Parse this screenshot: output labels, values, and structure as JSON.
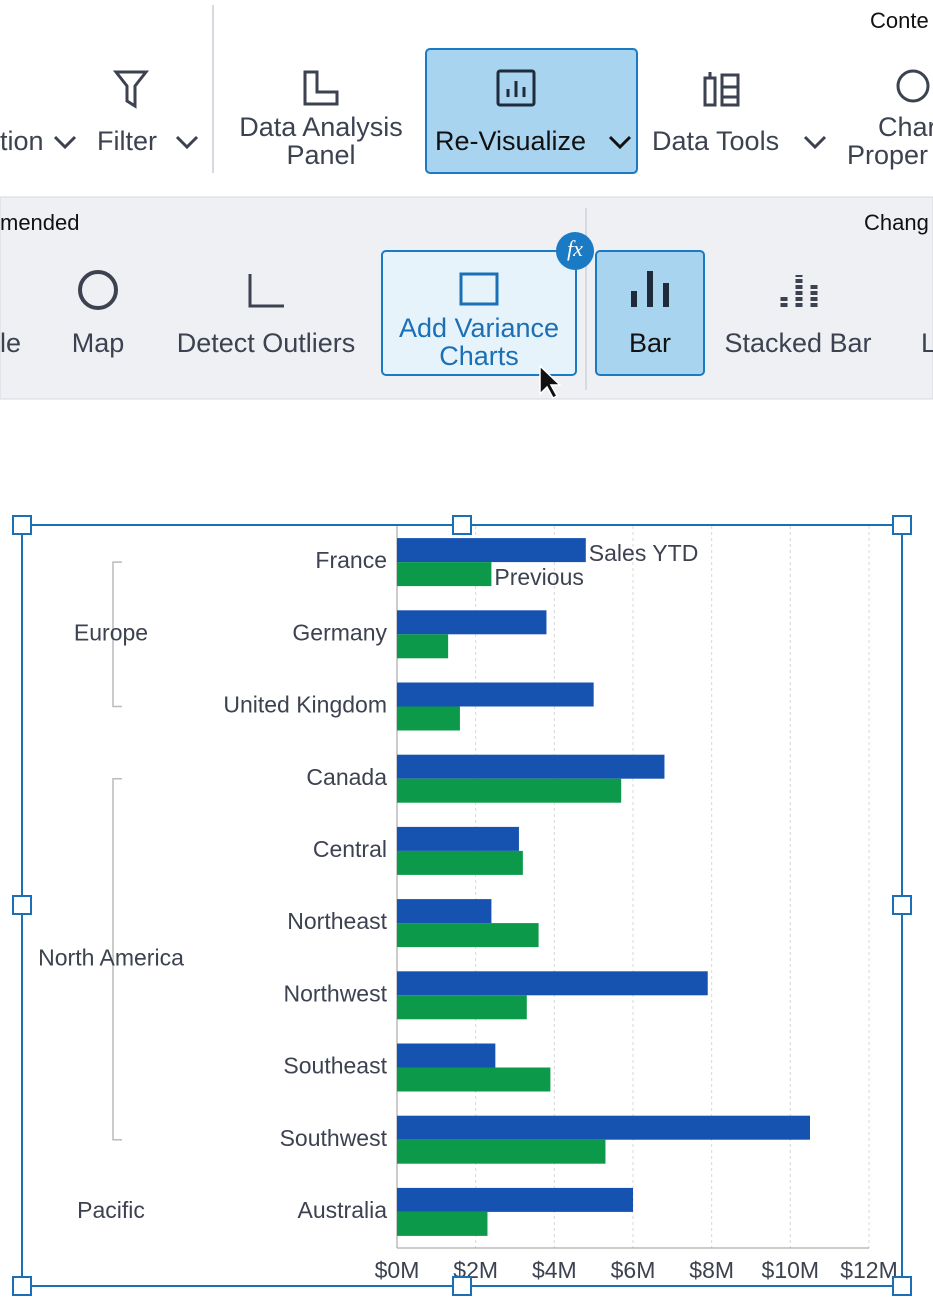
{
  "toolbar": {
    "corner_label": "Conte",
    "items": [
      {
        "lines": [
          "tion"
        ]
      },
      {
        "lines": [
          "Filter"
        ]
      },
      {
        "lines": [
          "Data Analysis",
          "Panel"
        ]
      },
      {
        "lines": [
          "Re-Visualize"
        ]
      },
      {
        "lines": [
          "Data Tools"
        ]
      },
      {
        "lines": [
          "Char",
          "Proper"
        ]
      }
    ]
  },
  "ribbon": {
    "left_section": "mended",
    "right_section": "Chang",
    "badge": "fx",
    "items": [
      {
        "lines": [
          "le"
        ]
      },
      {
        "lines": [
          "Map"
        ]
      },
      {
        "lines": [
          "Detect Outliers"
        ]
      },
      {
        "lines": [
          "Add Variance",
          "Charts"
        ]
      },
      {
        "lines": [
          "Bar"
        ]
      },
      {
        "lines": [
          "Stacked Bar"
        ]
      },
      {
        "lines": [
          "L"
        ]
      }
    ]
  },
  "chart_data": {
    "type": "bar",
    "orientation": "horizontal",
    "groups": [
      {
        "name": "Europe",
        "categories": [
          "France",
          "Germany",
          "United Kingdom"
        ]
      },
      {
        "name": "North America",
        "categories": [
          "Canada",
          "Central",
          "Northeast",
          "Northwest",
          "Southeast",
          "Southwest"
        ]
      },
      {
        "name": "Pacific",
        "categories": [
          "Australia"
        ]
      }
    ],
    "series": [
      {
        "name": "Sales YTD",
        "color": "#1652b0",
        "values": [
          4.8,
          3.8,
          5.0,
          6.8,
          3.1,
          2.4,
          7.9,
          2.5,
          10.5,
          6.0
        ]
      },
      {
        "name": "Previous",
        "color": "#0c9a4a",
        "values": [
          2.4,
          1.3,
          1.6,
          5.7,
          3.2,
          3.6,
          3.3,
          3.9,
          5.3,
          2.3
        ]
      }
    ],
    "xlim": [
      0,
      12
    ],
    "xticks": [
      {
        "value": 0,
        "label": "$0M"
      },
      {
        "value": 2,
        "label": "$2M"
      },
      {
        "value": 4,
        "label": "$4M"
      },
      {
        "value": 6,
        "label": "$6M"
      },
      {
        "value": 8,
        "label": "$8M"
      },
      {
        "value": 10,
        "label": "$10M"
      },
      {
        "value": 12,
        "label": "$12M"
      }
    ],
    "grid": true
  }
}
